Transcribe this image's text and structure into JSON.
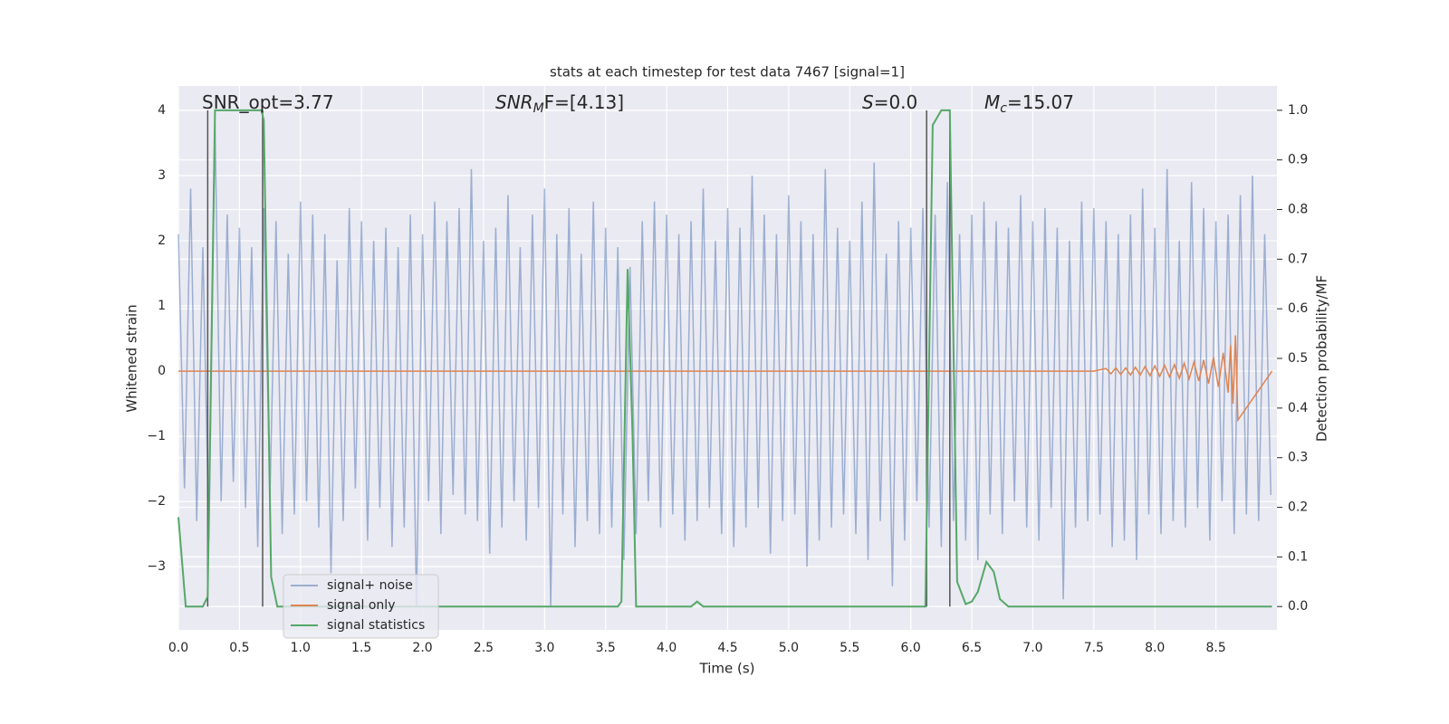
{
  "chart_data": {
    "type": "line",
    "title": "stats at each timestep for test data 7467 [signal=1]",
    "xlabel": "Time (s)",
    "ylabel": "Whitened strain",
    "y2label": "Detection probability/MF",
    "xlim": [
      0,
      9.0
    ],
    "ylim": [
      -3.97,
      4.375
    ],
    "y2lim": [
      -0.047,
      1.049
    ],
    "xticks": [
      {
        "value": 0,
        "label": "0.0"
      },
      0.5,
      {
        "value": 1,
        "label": "1.0"
      },
      1.5,
      {
        "value": 2,
        "label": "2.0"
      },
      2.5,
      {
        "value": 3,
        "label": "3.0"
      },
      3.5,
      {
        "value": 4,
        "label": "4.0"
      },
      4.5,
      {
        "value": 5,
        "label": "5.0"
      },
      5.5,
      {
        "value": 6,
        "label": "6.0"
      },
      6.5,
      {
        "value": 7,
        "label": "7.0"
      },
      7.5,
      {
        "value": 8,
        "label": "8.0"
      },
      8.5
    ],
    "yticks": [
      {
        "value": -3,
        "label": "−3"
      },
      {
        "value": -2,
        "label": "−2"
      },
      {
        "value": -1,
        "label": "−1"
      },
      0,
      1,
      2,
      3,
      4
    ],
    "y2ticks": [
      {
        "value": 0,
        "label": "0.0"
      },
      0.1,
      0.2,
      0.3,
      0.4,
      0.5,
      0.6,
      0.7,
      0.8,
      0.9,
      {
        "value": 1,
        "label": "1.0"
      }
    ],
    "grid": true,
    "legend": "lower left",
    "annotations": [
      {
        "main": "SNR_opt=3.77"
      },
      {
        "main": "SNR",
        "sub": "M",
        "rest": "F=[4.13]"
      },
      {
        "main": "S",
        "rest": "=0.0"
      },
      {
        "main": "M",
        "sub": "c",
        "rest": "=15.07"
      }
    ],
    "vlines": [
      0.24,
      0.69,
      6.13,
      6.32
    ],
    "series": [
      {
        "name": "signal+ noise",
        "color": "#4c72b0",
        "alpha": 0.5,
        "x": [
          0,
          0.05,
          0.1,
          0.15,
          0.2,
          0.25,
          0.3,
          0.35,
          0.4,
          0.45,
          0.5,
          0.55,
          0.6,
          0.65,
          0.7,
          0.75,
          0.8,
          0.85,
          0.9,
          0.95,
          1,
          1.05,
          1.1,
          1.15,
          1.2,
          1.25,
          1.3,
          1.35,
          1.4,
          1.45,
          1.5,
          1.55,
          1.6,
          1.65,
          1.7,
          1.75,
          1.8,
          1.85,
          1.9,
          1.95,
          2,
          2.05,
          2.1,
          2.15,
          2.2,
          2.25,
          2.3,
          2.35,
          2.4,
          2.45,
          2.5,
          2.55,
          2.6,
          2.65,
          2.7,
          2.75,
          2.8,
          2.85,
          2.9,
          2.95,
          3,
          3.05,
          3.1,
          3.15,
          3.2,
          3.25,
          3.3,
          3.35,
          3.4,
          3.45,
          3.5,
          3.55,
          3.6,
          3.65,
          3.7,
          3.75,
          3.8,
          3.85,
          3.9,
          3.95,
          4,
          4.05,
          4.1,
          4.15,
          4.2,
          4.25,
          4.3,
          4.35,
          4.4,
          4.45,
          4.5,
          4.55,
          4.6,
          4.65,
          4.7,
          4.75,
          4.8,
          4.85,
          4.9,
          4.95,
          5,
          5.05,
          5.1,
          5.15,
          5.2,
          5.25,
          5.3,
          5.35,
          5.4,
          5.45,
          5.5,
          5.55,
          5.6,
          5.65,
          5.7,
          5.75,
          5.8,
          5.85,
          5.9,
          5.95,
          6,
          6.05,
          6.1,
          6.15,
          6.2,
          6.25,
          6.3,
          6.35,
          6.4,
          6.45,
          6.5,
          6.55,
          6.6,
          6.65,
          6.7,
          6.75,
          6.8,
          6.85,
          6.9,
          6.95,
          7,
          7.05,
          7.1,
          7.15,
          7.2,
          7.25,
          7.3,
          7.35,
          7.4,
          7.45,
          7.5,
          7.55,
          7.6,
          7.65,
          7.7,
          7.75,
          7.8,
          7.85,
          7.9,
          7.95,
          8,
          8.05,
          8.1,
          8.15,
          8.2,
          8.25,
          8.3,
          8.35,
          8.4,
          8.45,
          8.5,
          8.55,
          8.6,
          8.65,
          8.7,
          8.75,
          8.8,
          8.85,
          8.9,
          8.95
        ],
        "values": [
          2.1,
          -1.8,
          2.8,
          -2.3,
          1.9,
          -2.6,
          3.8,
          -2.0,
          2.4,
          -1.7,
          2.2,
          -2.1,
          1.9,
          -2.7,
          2.5,
          -1.9,
          2.3,
          -2.5,
          1.8,
          -2.2,
          2.6,
          -2.0,
          2.4,
          -2.4,
          2.1,
          -3.1,
          1.7,
          -2.3,
          2.5,
          -1.8,
          2.3,
          -2.6,
          2.0,
          -2.1,
          2.2,
          -2.7,
          1.9,
          -2.4,
          2.4,
          -3.6,
          2.1,
          -2.0,
          2.6,
          -2.5,
          2.3,
          -1.9,
          2.5,
          -2.2,
          3.1,
          -2.3,
          2.0,
          -2.8,
          2.2,
          -2.4,
          2.7,
          -2.0,
          1.9,
          -2.6,
          2.4,
          -2.1,
          2.8,
          -3.6,
          2.1,
          -2.2,
          2.5,
          -2.7,
          1.8,
          -2.3,
          2.6,
          -2.5,
          2.2,
          -2.4,
          1.9,
          -2.9,
          1.6,
          -2.5,
          2.3,
          -2.0,
          2.6,
          -2.4,
          2.4,
          -2.2,
          2.1,
          -2.6,
          2.3,
          -2.3,
          2.8,
          -2.1,
          2.0,
          -2.5,
          2.5,
          -2.7,
          2.2,
          -2.4,
          3.0,
          -2.1,
          2.4,
          -2.8,
          2.1,
          -2.3,
          2.7,
          -2.2,
          2.3,
          -3.0,
          2.1,
          -2.6,
          3.1,
          -2.4,
          2.2,
          -2.2,
          2.0,
          -2.5,
          2.6,
          -2.9,
          3.2,
          -2.3,
          1.8,
          -3.3,
          2.3,
          -2.6,
          2.2,
          -2.0,
          2.5,
          -2.4,
          2.4,
          -2.7,
          2.9,
          -2.3,
          2.1,
          -2.6,
          2.4,
          -2.9,
          2.6,
          -2.2,
          2.3,
          -2.5,
          2.2,
          -2.0,
          2.7,
          -2.4,
          2.3,
          -2.6,
          2.5,
          -2.1,
          2.2,
          -3.5,
          2.0,
          -2.4,
          2.6,
          -2.3,
          2.5,
          -2.2,
          2.3,
          -2.7,
          2.1,
          -2.6,
          2.4,
          -2.9,
          2.8,
          -2.2,
          2.2,
          -2.5,
          3.1,
          -2.3,
          2.0,
          -2.4,
          2.9,
          -2.1,
          2.5,
          -2.6,
          2.3,
          -2.0,
          2.4,
          -2.5,
          2.7,
          -2.2,
          3.0,
          -2.3,
          2.1,
          -1.9
        ]
      },
      {
        "name": "signal only",
        "color": "#dd8452",
        "x": [
          0,
          7.5,
          7.6,
          7.64,
          7.68,
          7.72,
          7.76,
          7.8,
          7.84,
          7.88,
          7.92,
          7.96,
          8.0,
          8.04,
          8.08,
          8.12,
          8.16,
          8.2,
          8.24,
          8.28,
          8.32,
          8.36,
          8.4,
          8.44,
          8.48,
          8.52,
          8.56,
          8.6,
          8.62,
          8.64,
          8.66,
          8.68,
          8.96
        ],
        "values": [
          0,
          0,
          0.04,
          -0.04,
          0.05,
          -0.05,
          0.05,
          -0.06,
          0.06,
          -0.06,
          0.07,
          -0.07,
          0.08,
          -0.08,
          0.09,
          -0.09,
          0.1,
          -0.11,
          0.12,
          -0.12,
          0.14,
          -0.15,
          0.17,
          -0.19,
          0.21,
          -0.24,
          0.28,
          -0.33,
          0.4,
          -0.5,
          0.55,
          -0.75,
          0
        ]
      },
      {
        "name": "signal statistics",
        "color": "#55a868",
        "axis": "y2",
        "x": [
          0,
          0.06,
          0.2,
          0.24,
          0.3,
          0.68,
          0.7,
          0.76,
          0.81,
          3.6,
          3.63,
          3.68,
          3.72,
          3.75,
          4.2,
          4.25,
          4.3,
          6.12,
          6.18,
          6.25,
          6.32,
          6.38,
          6.45,
          6.5,
          6.55,
          6.62,
          6.68,
          6.73,
          6.8,
          8.96
        ],
        "values": [
          0.18,
          0,
          0,
          0.02,
          1.0,
          1.0,
          0.98,
          0.06,
          0,
          0,
          0.01,
          0.68,
          0.35,
          0,
          0,
          0.01,
          0,
          0,
          0.97,
          1.0,
          1.0,
          0.05,
          0.005,
          0.01,
          0.03,
          0.09,
          0.07,
          0.015,
          0,
          0
        ]
      }
    ]
  }
}
